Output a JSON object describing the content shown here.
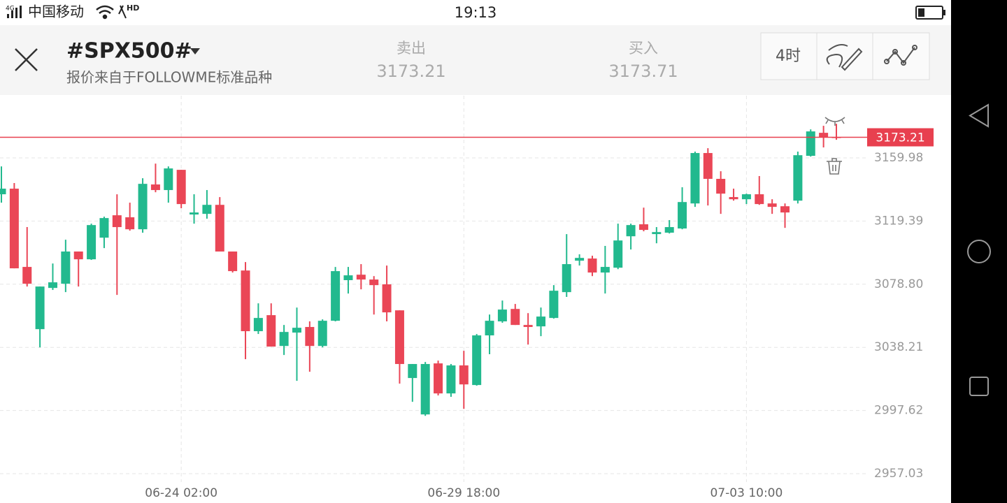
{
  "status_bar": {
    "network": "4G",
    "carrier": "中国移动",
    "hd": "HD",
    "time": "19:13"
  },
  "header": {
    "title": "#SPX500#",
    "subtitle": "报价来自于FOLLOWME标准品种",
    "sell": {
      "label": "卖出",
      "price": 3173.21
    },
    "buy": {
      "label": "买入",
      "price": 3173.71
    },
    "timeframe": "4时"
  },
  "chart_data": {
    "type": "candlestick",
    "categories": [
      null,
      null,
      null,
      null,
      null,
      null,
      null,
      null,
      null,
      null,
      null,
      null,
      null,
      null,
      "06-24 02:00",
      null,
      null,
      null,
      null,
      null,
      null,
      null,
      null,
      null,
      null,
      null,
      null,
      null,
      null,
      null,
      null,
      null,
      null,
      null,
      null,
      null,
      "06-29 18:00",
      null,
      null,
      null,
      null,
      null,
      null,
      null,
      null,
      null,
      null,
      null,
      null,
      null,
      null,
      null,
      null,
      null,
      null,
      null,
      null,
      null,
      "07-03 10:00",
      null,
      null,
      null,
      null,
      null,
      null,
      null
    ],
    "open": [
      3136.6,
      3140.2,
      3089.9,
      3049.9,
      3076.4,
      3079.1,
      3099.8,
      3094.8,
      3108.7,
      3123.1,
      3121.8,
      3114.1,
      3142.9,
      3139.3,
      3152.3,
      3123.6,
      3124.0,
      3129.8,
      3099.8,
      3087.6,
      3048.6,
      3058.9,
      3039.1,
      3047.7,
      3051.3,
      3039.1,
      3055.3,
      3081.4,
      3084.9,
      3081.8,
      3078.7,
      3062.0,
      3018.5,
      2995.1,
      3027.9,
      3008.6,
      3026.6,
      3014.0,
      3045.9,
      3054.9,
      3062.9,
      3052.6,
      3051.7,
      3057.1,
      3073.7,
      3093.9,
      3095.3,
      3086.3,
      3089.4,
      3109.6,
      3117.3,
      3111.0,
      3111.9,
      3114.6,
      3130.7,
      3163.1,
      3146.5,
      3134.8,
      3133.4,
      3136.6,
      3130.7,
      3128.9,
      3132.5,
      3161.3,
      3176.1,
      3173.4
    ],
    "high": [
      3154.5,
      3143.8,
      3115.5,
      3077.3,
      3092.1,
      3107.4,
      3099.8,
      3117.7,
      3122.2,
      3136.6,
      3131.2,
      3146.9,
      3156.3,
      3154.5,
      3152.3,
      3136.6,
      3139.3,
      3134.8,
      3099.8,
      3093.0,
      3066.5,
      3066.5,
      3052.6,
      3063.8,
      3054.9,
      3056.2,
      3089.9,
      3089.9,
      3091.7,
      3084.0,
      3090.8,
      3062.0,
      3027.5,
      3028.8,
      3029.7,
      3027.5,
      3036.0,
      3046.8,
      3059.3,
      3068.3,
      3066.1,
      3060.2,
      3063.8,
      3078.2,
      3111.0,
      3098.0,
      3097.1,
      3103.4,
      3117.7,
      3117.7,
      3128.0,
      3115.5,
      3120.0,
      3141.1,
      3164.0,
      3166.2,
      3151.4,
      3140.2,
      3137.0,
      3148.3,
      3133.4,
      3130.7,
      3164.0,
      3178.3,
      3180.6,
      3181.9
    ],
    "low": [
      3131.2,
      3089.0,
      3077.3,
      3038.2,
      3075.1,
      3073.7,
      3077.3,
      3094.4,
      3102.0,
      3071.9,
      3113.2,
      3111.9,
      3137.9,
      3131.2,
      3127.6,
      3117.7,
      3120.9,
      3099.8,
      3086.3,
      3030.6,
      3046.8,
      3038.7,
      3033.3,
      3016.7,
      3022.5,
      3038.2,
      3054.9,
      3072.8,
      3075.5,
      3059.3,
      3054.9,
      3014.9,
      3003.2,
      2994.2,
      3007.3,
      3006.4,
      2998.7,
      3013.6,
      3033.8,
      3054.0,
      3052.6,
      3040.0,
      3045.4,
      3056.7,
      3070.6,
      3090.8,
      3084.0,
      3072.8,
      3088.5,
      3101.1,
      3112.8,
      3105.1,
      3111.4,
      3114.1,
      3128.5,
      3129.4,
      3124.0,
      3132.5,
      3130.3,
      3129.8,
      3124.0,
      3115.0,
      3130.7,
      3160.8,
      3166.7,
      3171.6
    ],
    "close": [
      3140.2,
      3089.0,
      3079.1,
      3077.3,
      3080.0,
      3099.8,
      3094.8,
      3116.8,
      3121.3,
      3115.5,
      3114.1,
      3143.3,
      3139.3,
      3153.2,
      3130.3,
      3124.9,
      3129.8,
      3099.8,
      3087.2,
      3048.6,
      3057.1,
      3038.7,
      3048.1,
      3050.8,
      3039.1,
      3055.3,
      3087.2,
      3084.5,
      3081.8,
      3078.2,
      3060.7,
      3027.5,
      3027.5,
      3027.5,
      3008.6,
      3026.6,
      3014.4,
      3045.9,
      3055.3,
      3062.5,
      3052.6,
      3051.3,
      3058.0,
      3074.6,
      3091.7,
      3095.7,
      3086.3,
      3089.9,
      3106.9,
      3116.8,
      3113.7,
      3112.3,
      3115.5,
      3131.6,
      3163.1,
      3146.5,
      3137.0,
      3133.4,
      3136.6,
      3130.3,
      3128.5,
      3124.9,
      3161.7,
      3177.0,
      3173.4,
      3173.21
    ],
    "up_color": "#22b98e",
    "down_color": "#ea4656",
    "price_line": 3173.21,
    "price_line_color": "#e8404f",
    "ylim": [
      2951.64,
      3199.94
    ],
    "yticks": [
      3159.98,
      3119.39,
      {
        "value": 3078.8,
        "label": "3078.80"
      },
      3038.21,
      2997.62,
      2957.03
    ],
    "grid": true
  }
}
